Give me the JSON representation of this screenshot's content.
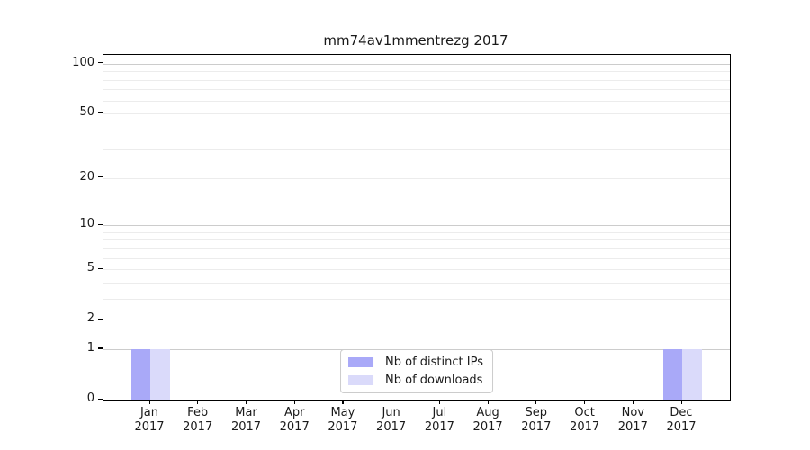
{
  "chart_data": {
    "type": "bar",
    "title": "mm74av1mmentrezg 2017",
    "categories": [
      "Jan",
      "Feb",
      "Mar",
      "Apr",
      "May",
      "Jun",
      "Jul",
      "Aug",
      "Sep",
      "Oct",
      "Nov",
      "Dec"
    ],
    "category_year": "2017",
    "series": [
      {
        "name": "Nb of distinct IPs",
        "color": "#a9a9f8",
        "values": [
          1,
          0,
          0,
          0,
          0,
          0,
          0,
          0,
          0,
          0,
          0,
          1
        ]
      },
      {
        "name": "Nb of downloads",
        "color": "#dadafa",
        "values": [
          1,
          0,
          0,
          0,
          0,
          0,
          0,
          0,
          0,
          0,
          0,
          1
        ]
      }
    ],
    "yticks": [
      0,
      1,
      2,
      5,
      10,
      20,
      50,
      100
    ],
    "ylim": [
      0,
      113
    ],
    "yscale": "log10(1+v)",
    "xlabel": "",
    "ylabel": "",
    "grid": "horizontal, minor + major",
    "gridline_minor_values": [
      2,
      3,
      4,
      5,
      6,
      7,
      8,
      9,
      20,
      30,
      40,
      50,
      60,
      70,
      80,
      90
    ],
    "gridline_major_values": [
      1,
      10,
      100
    ],
    "legend_position": "bottom-center",
    "colors": {
      "background": "#ffffff",
      "spine": "#000000",
      "grid_minor": "#ececec",
      "grid_major": "#cccccc",
      "text": "#1a1a1a",
      "legend_border": "#cccccc"
    }
  }
}
